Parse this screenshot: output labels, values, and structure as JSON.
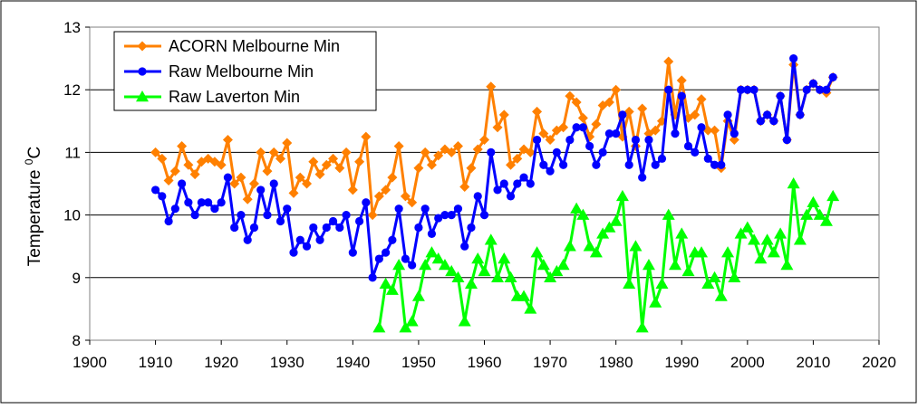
{
  "chart_data": {
    "type": "line",
    "ylabel": "Temperature",
    "ylabel_superscript": "0",
    "ylabel_unit": "C",
    "xlim": [
      1900,
      2020
    ],
    "ylim": [
      8,
      13
    ],
    "x_ticks": [
      "1900",
      "1910",
      "1920",
      "1930",
      "1940",
      "1950",
      "1960",
      "1970",
      "1980",
      "1990",
      "2000",
      "2010",
      "2020"
    ],
    "y_ticks": [
      "8",
      "9",
      "10",
      "11",
      "12",
      "13"
    ],
    "grid": "horizontal",
    "legend_position": "top-left",
    "colors": {
      "acorn": "#ff8000",
      "raw_melbourne": "#0000ff",
      "raw_laverton": "#00ff00",
      "grid": "#000000"
    },
    "legend": [
      "ACORN Melbourne Min",
      "Raw Melbourne Min",
      "Raw Laverton Min"
    ],
    "series": [
      {
        "name": "ACORN Melbourne Min",
        "marker": "diamond",
        "x": [
          1910,
          1911,
          1912,
          1913,
          1914,
          1915,
          1916,
          1917,
          1918,
          1919,
          1920,
          1921,
          1922,
          1923,
          1924,
          1925,
          1926,
          1927,
          1928,
          1929,
          1930,
          1931,
          1932,
          1933,
          1934,
          1935,
          1936,
          1937,
          1938,
          1939,
          1940,
          1941,
          1942,
          1943,
          1944,
          1945,
          1946,
          1947,
          1948,
          1949,
          1950,
          1951,
          1952,
          1953,
          1954,
          1955,
          1956,
          1957,
          1958,
          1959,
          1960,
          1961,
          1962,
          1963,
          1964,
          1965,
          1966,
          1967,
          1968,
          1969,
          1970,
          1971,
          1972,
          1973,
          1974,
          1975,
          1976,
          1977,
          1978,
          1979,
          1980,
          1981,
          1982,
          1983,
          1984,
          1985,
          1986,
          1987,
          1988,
          1989,
          1990,
          1991,
          1992,
          1993,
          1994,
          1995,
          1996,
          1997,
          1998,
          1999,
          2000,
          2001,
          2002,
          2003,
          2004,
          2005,
          2006,
          2007,
          2008,
          2009,
          2010,
          2011,
          2012,
          2013
        ],
        "values": [
          11.0,
          10.9,
          10.55,
          10.7,
          11.1,
          10.8,
          10.65,
          10.85,
          10.9,
          10.85,
          10.8,
          11.2,
          10.5,
          10.6,
          10.25,
          10.5,
          11.0,
          10.7,
          11.0,
          10.9,
          11.15,
          10.35,
          10.6,
          10.5,
          10.85,
          10.65,
          10.8,
          10.9,
          10.75,
          11.0,
          10.4,
          10.85,
          11.25,
          10.0,
          10.3,
          10.4,
          10.6,
          11.1,
          10.3,
          10.2,
          10.75,
          11.0,
          10.8,
          10.95,
          11.05,
          11.0,
          11.1,
          10.45,
          10.75,
          11.05,
          11.2,
          12.05,
          11.4,
          11.6,
          10.8,
          10.9,
          11.05,
          11.0,
          11.65,
          11.3,
          11.2,
          11.35,
          11.4,
          11.9,
          11.8,
          11.55,
          11.25,
          11.45,
          11.75,
          11.8,
          12.0,
          11.25,
          11.65,
          11.1,
          11.7,
          11.3,
          11.35,
          11.5,
          12.45,
          11.6,
          12.15,
          11.55,
          11.6,
          11.85,
          11.35,
          11.35,
          10.75,
          11.5,
          11.2,
          12.0,
          12.0,
          12.0,
          11.5,
          11.6,
          11.5,
          11.9,
          11.2,
          12.4,
          11.6,
          12.0,
          12.1,
          12.0,
          11.95,
          12.2
        ]
      },
      {
        "name": "Raw Melbourne Min",
        "marker": "circle",
        "x": [
          1910,
          1911,
          1912,
          1913,
          1914,
          1915,
          1916,
          1917,
          1918,
          1919,
          1920,
          1921,
          1922,
          1923,
          1924,
          1925,
          1926,
          1927,
          1928,
          1929,
          1930,
          1931,
          1932,
          1933,
          1934,
          1935,
          1936,
          1937,
          1938,
          1939,
          1940,
          1941,
          1942,
          1943,
          1944,
          1945,
          1946,
          1947,
          1948,
          1949,
          1950,
          1951,
          1952,
          1953,
          1954,
          1955,
          1956,
          1957,
          1958,
          1959,
          1960,
          1961,
          1962,
          1963,
          1964,
          1965,
          1966,
          1967,
          1968,
          1969,
          1970,
          1971,
          1972,
          1973,
          1974,
          1975,
          1976,
          1977,
          1978,
          1979,
          1980,
          1981,
          1982,
          1983,
          1984,
          1985,
          1986,
          1987,
          1988,
          1989,
          1990,
          1991,
          1992,
          1993,
          1994,
          1995,
          1996,
          1997,
          1998,
          1999,
          2000,
          2001,
          2002,
          2003,
          2004,
          2005,
          2006,
          2007,
          2008,
          2009,
          2010,
          2011,
          2012,
          2013
        ],
        "values": [
          10.4,
          10.3,
          9.9,
          10.1,
          10.5,
          10.2,
          10.0,
          10.2,
          10.2,
          10.1,
          10.2,
          10.6,
          9.8,
          10.0,
          9.6,
          9.8,
          10.4,
          10.0,
          10.5,
          9.9,
          10.1,
          9.4,
          9.6,
          9.5,
          9.8,
          9.6,
          9.8,
          9.9,
          9.8,
          10.0,
          9.4,
          9.9,
          10.2,
          9.0,
          9.3,
          9.4,
          9.6,
          10.1,
          9.3,
          9.2,
          9.8,
          10.1,
          9.7,
          9.95,
          10.0,
          10.0,
          10.1,
          9.5,
          9.8,
          10.3,
          10.0,
          11.0,
          10.4,
          10.5,
          10.3,
          10.5,
          10.6,
          10.5,
          11.2,
          10.8,
          10.7,
          11.0,
          10.8,
          11.2,
          11.4,
          11.4,
          11.1,
          10.8,
          11.0,
          11.3,
          11.3,
          11.6,
          10.8,
          11.2,
          10.6,
          11.2,
          10.8,
          10.9,
          12.0,
          11.3,
          11.9,
          11.1,
          11.0,
          11.4,
          10.9,
          10.8,
          10.8,
          11.6,
          11.3,
          12.0,
          12.0,
          12.0,
          11.5,
          11.6,
          11.5,
          11.9,
          11.2,
          12.5,
          11.6,
          12.0,
          12.1,
          12.0,
          12.0,
          12.2
        ]
      },
      {
        "name": "Raw Laverton Min",
        "marker": "triangle",
        "x": [
          1944,
          1945,
          1946,
          1947,
          1948,
          1949,
          1950,
          1951,
          1952,
          1953,
          1954,
          1955,
          1956,
          1957,
          1958,
          1959,
          1960,
          1961,
          1962,
          1963,
          1964,
          1965,
          1966,
          1967,
          1968,
          1969,
          1970,
          1971,
          1972,
          1973,
          1974,
          1975,
          1976,
          1977,
          1978,
          1979,
          1980,
          1981,
          1982,
          1983,
          1984,
          1985,
          1986,
          1987,
          1988,
          1989,
          1990,
          1991,
          1992,
          1993,
          1994,
          1995,
          1996,
          1997,
          1998,
          1999,
          2000,
          2001,
          2002,
          2003,
          2004,
          2005,
          2006,
          2007,
          2008,
          2009,
          2010,
          2011,
          2012,
          2013
        ],
        "values": [
          8.2,
          8.9,
          8.8,
          9.2,
          8.2,
          8.3,
          8.7,
          9.2,
          9.4,
          9.3,
          9.2,
          9.1,
          9.0,
          8.3,
          8.9,
          9.3,
          9.1,
          9.6,
          9.0,
          9.3,
          9.0,
          8.7,
          8.7,
          8.5,
          9.4,
          9.2,
          9.0,
          9.1,
          9.2,
          9.5,
          10.1,
          10.0,
          9.5,
          9.4,
          9.7,
          9.8,
          9.9,
          10.3,
          8.9,
          9.5,
          8.2,
          9.2,
          8.6,
          8.9,
          10.0,
          9.2,
          9.7,
          9.1,
          9.4,
          9.4,
          8.9,
          9.0,
          8.7,
          9.4,
          9.0,
          9.7,
          9.8,
          9.6,
          9.3,
          9.6,
          9.4,
          9.7,
          9.2,
          10.5,
          9.6,
          10.0,
          10.2,
          10.0,
          9.9,
          10.3
        ]
      }
    ]
  }
}
